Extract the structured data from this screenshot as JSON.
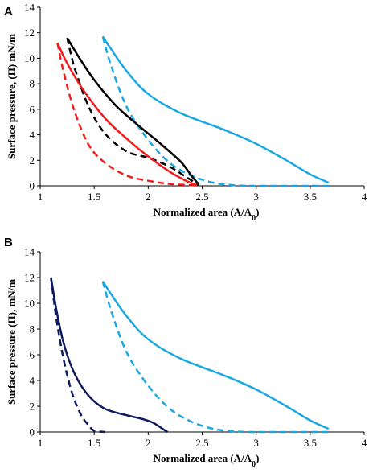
{
  "chart_data": [
    {
      "type": "line",
      "panel": "A",
      "xlabel": "Normalized area (A/A",
      "xlabel_sub": "0",
      "xlabel_end": ")",
      "ylabel": "Surface pressure, (Π) mN/m",
      "xlim": [
        1,
        4
      ],
      "ylim": [
        0,
        14
      ],
      "xticks": [
        "1",
        "1.5",
        "2",
        "2.5",
        "3",
        "3.5",
        "4"
      ],
      "yticks": [
        "0",
        "2",
        "4",
        "6",
        "8",
        "10",
        "12",
        "14"
      ],
      "grid": false,
      "legend": "none",
      "series": [
        {
          "color": "#1aa7e2",
          "dash": "solid",
          "x": [
            1.58,
            1.65,
            1.8,
            2.0,
            2.3,
            2.7,
            3.0,
            3.3,
            3.5,
            3.67
          ],
          "y": [
            11.7,
            10.8,
            9.0,
            7.2,
            5.7,
            4.4,
            3.3,
            1.9,
            0.9,
            0.25
          ]
        },
        {
          "color": "#1aa7e2",
          "dash": "dashed",
          "x": [
            1.58,
            1.65,
            1.8,
            2.0,
            2.2,
            2.4,
            2.6,
            2.8,
            3.0,
            3.67
          ],
          "y": [
            11.7,
            9.6,
            6.2,
            3.6,
            1.8,
            0.8,
            0.25,
            0.05,
            0.0,
            0.0
          ]
        },
        {
          "color": "#000000",
          "dash": "solid",
          "x": [
            1.25,
            1.35,
            1.5,
            1.7,
            1.9,
            2.1,
            2.3,
            2.4,
            2.47
          ],
          "y": [
            11.6,
            10.2,
            8.3,
            6.3,
            4.8,
            3.4,
            1.9,
            0.8,
            0.1
          ]
        },
        {
          "color": "#000000",
          "dash": "dashed",
          "x": [
            1.25,
            1.32,
            1.45,
            1.6,
            1.8,
            2.0,
            2.2,
            2.35,
            2.47
          ],
          "y": [
            11.6,
            9.2,
            6.2,
            4.1,
            2.7,
            2.2,
            1.5,
            0.7,
            0.05
          ]
        },
        {
          "color": "#ee1c1c",
          "dash": "solid",
          "x": [
            1.16,
            1.25,
            1.4,
            1.6,
            1.8,
            2.0,
            2.2,
            2.35,
            2.45
          ],
          "y": [
            11.2,
            9.6,
            7.5,
            5.3,
            3.7,
            2.3,
            1.1,
            0.4,
            0.05
          ]
        },
        {
          "color": "#ee1c1c",
          "dash": "dashed",
          "x": [
            1.16,
            1.22,
            1.32,
            1.45,
            1.6,
            1.8,
            2.0,
            2.2,
            2.4,
            2.47
          ],
          "y": [
            11.2,
            8.8,
            5.8,
            3.2,
            1.8,
            0.8,
            0.4,
            0.15,
            0.05,
            0.0
          ]
        }
      ]
    },
    {
      "type": "line",
      "panel": "B",
      "xlabel": "Normalized area (A/A",
      "xlabel_sub": "0",
      "xlabel_end": ")",
      "ylabel": "Surface pressure (Π), mN/m",
      "xlim": [
        1,
        4
      ],
      "ylim": [
        0,
        14
      ],
      "xticks": [
        "1",
        "1.5",
        "2",
        "2.5",
        "3",
        "3.5",
        "4"
      ],
      "yticks": [
        "0",
        "2",
        "4",
        "6",
        "8",
        "10",
        "12",
        "14"
      ],
      "grid": false,
      "legend": "none",
      "series": [
        {
          "color": "#1aa7e2",
          "dash": "solid",
          "x": [
            1.58,
            1.65,
            1.8,
            2.0,
            2.3,
            2.7,
            3.0,
            3.3,
            3.5,
            3.67
          ],
          "y": [
            11.7,
            10.8,
            9.0,
            7.2,
            5.7,
            4.4,
            3.3,
            1.9,
            0.9,
            0.25
          ]
        },
        {
          "color": "#1aa7e2",
          "dash": "dashed",
          "x": [
            1.58,
            1.65,
            1.8,
            2.0,
            2.2,
            2.4,
            2.6,
            2.8,
            3.0,
            3.67
          ],
          "y": [
            11.7,
            9.6,
            6.2,
            3.6,
            1.8,
            0.8,
            0.25,
            0.05,
            0.0,
            0.0
          ]
        },
        {
          "color": "#0d1a5c",
          "dash": "solid",
          "x": [
            1.1,
            1.15,
            1.22,
            1.32,
            1.45,
            1.6,
            1.8,
            1.95,
            2.05,
            2.15,
            2.18
          ],
          "y": [
            12.0,
            9.5,
            6.8,
            4.5,
            2.8,
            1.8,
            1.3,
            1.0,
            0.7,
            0.15,
            0.0
          ]
        },
        {
          "color": "#0d1a5c",
          "dash": "dashed",
          "x": [
            1.1,
            1.15,
            1.22,
            1.3,
            1.38,
            1.45,
            1.5,
            1.6
          ],
          "y": [
            12.0,
            8.8,
            5.5,
            2.9,
            1.3,
            0.5,
            0.1,
            0.0
          ]
        }
      ]
    }
  ]
}
